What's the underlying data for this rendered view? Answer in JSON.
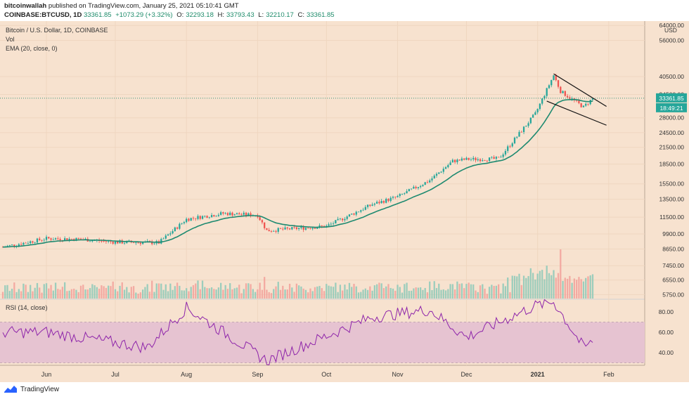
{
  "header": {
    "publisher": "bitcoinwallah",
    "published_text": "published on TradingView.com, January 25, 2021 05:10:41 GMT",
    "symbol": "COINBASE:BTCUSD, 1D",
    "last": "33361.85",
    "change": "+1073.29 (+3.32%)",
    "open_label": "O:",
    "open": "32293.18",
    "high_label": "H:",
    "high": "33793.43",
    "low_label": "L:",
    "low": "32210.17",
    "close_label": "C:",
    "close": "33361.85"
  },
  "legend": {
    "title": "Bitcoin / U.S. Dollar, 1D, COINBASE",
    "vol": "Vol",
    "ema": "EMA (20, close, 0)"
  },
  "price_axis": {
    "currency": "USD",
    "ticks": [
      "64000.00",
      "56000.00",
      "40500.00",
      "34500.00",
      "28000.00",
      "24500.00",
      "21500.00",
      "18500.00",
      "15500.00",
      "13500.00",
      "11500.00",
      "9900.00",
      "8650.00",
      "7450.00",
      "6550.00",
      "5750.00"
    ],
    "last_price_label": "33361.85",
    "countdown_label": "18:49:21"
  },
  "rsi": {
    "label": "RSI (14, close)",
    "ticks": [
      "80.00",
      "60.00",
      "40.00"
    ],
    "upper": 70,
    "lower": 30
  },
  "time_axis": {
    "labels": [
      "Jun",
      "Jul",
      "Aug",
      "Sep",
      "Oct",
      "Nov",
      "Dec",
      "2021",
      "Feb"
    ],
    "bold_index": 7
  },
  "footer": {
    "brand": "TradingView"
  },
  "colors": {
    "background": "#f7e2cf",
    "up": "#26a69a",
    "down": "#ef5350",
    "ema": "#1e8a70",
    "rsi_line": "#8e24aa",
    "rsi_band": "#e6c3d1"
  },
  "chart_data": {
    "type": "candlestick",
    "x_range": [
      "2020-05-13",
      "2021-01-25"
    ],
    "price_scale": "log",
    "ylim": [
      5400,
      66000
    ],
    "pattern": "descending broadening wedge drawn with two trendlines after the January 2021 high",
    "monthly_anchor_closes": [
      {
        "date": "2020-05-13",
        "close": 8800
      },
      {
        "date": "2020-06-01",
        "close": 9500
      },
      {
        "date": "2020-06-15",
        "close": 9450
      },
      {
        "date": "2020-07-01",
        "close": 9200
      },
      {
        "date": "2020-07-20",
        "close": 9150
      },
      {
        "date": "2020-08-01",
        "close": 11300
      },
      {
        "date": "2020-08-17",
        "close": 11900
      },
      {
        "date": "2020-09-01",
        "close": 11700
      },
      {
        "date": "2020-09-05",
        "close": 10200
      },
      {
        "date": "2020-10-01",
        "close": 10600
      },
      {
        "date": "2020-10-21",
        "close": 12900
      },
      {
        "date": "2020-11-01",
        "close": 13800
      },
      {
        "date": "2020-11-15",
        "close": 16000
      },
      {
        "date": "2020-11-25",
        "close": 19000
      },
      {
        "date": "2020-12-01",
        "close": 19300
      },
      {
        "date": "2020-12-15",
        "close": 19400
      },
      {
        "date": "2020-12-31",
        "close": 29000
      },
      {
        "date": "2021-01-08",
        "close": 41000
      },
      {
        "date": "2021-01-11",
        "close": 35500
      },
      {
        "date": "2021-01-21",
        "close": 30800
      },
      {
        "date": "2021-01-25",
        "close": 33361.85
      }
    ],
    "rsi_series_anchors": [
      {
        "date": "2020-06-01",
        "value": 60
      },
      {
        "date": "2020-07-15",
        "value": 45
      },
      {
        "date": "2020-08-01",
        "value": 84
      },
      {
        "date": "2020-09-05",
        "value": 32
      },
      {
        "date": "2020-10-21",
        "value": 75
      },
      {
        "date": "2020-11-15",
        "value": 82
      },
      {
        "date": "2020-12-01",
        "value": 55
      },
      {
        "date": "2020-12-31",
        "value": 86
      },
      {
        "date": "2021-01-08",
        "value": 90
      },
      {
        "date": "2021-01-21",
        "value": 45
      },
      {
        "date": "2021-01-25",
        "value": 50
      }
    ]
  }
}
